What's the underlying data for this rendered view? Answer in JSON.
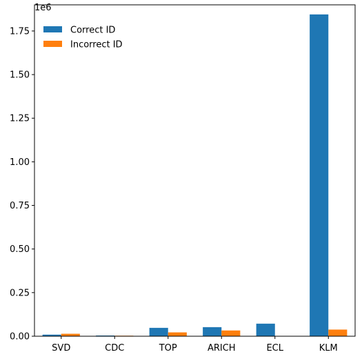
{
  "chart_data": {
    "type": "bar",
    "categories": [
      "SVD",
      "CDC",
      "TOP",
      "ARICH",
      "ECL",
      "KLM"
    ],
    "series": [
      {
        "name": "Correct ID",
        "color": "#1f77b4",
        "values": [
          9000,
          4000,
          48000,
          52000,
          72000,
          1845000
        ]
      },
      {
        "name": "Incorrect ID",
        "color": "#ff7f0e",
        "values": [
          14000,
          3000,
          22000,
          33000,
          0,
          38000
        ]
      }
    ],
    "ylim": [
      0,
      1900000
    ],
    "y_ticks": [
      0,
      250000,
      500000,
      750000,
      1000000,
      1250000,
      1500000,
      1750000
    ],
    "y_tick_labels": [
      "0.00",
      "0.25",
      "0.50",
      "0.75",
      "1.00",
      "1.25",
      "1.50",
      "1.75"
    ],
    "y_offset_label": "1e6",
    "legend_position": "top-left",
    "grid": false,
    "title": "",
    "xlabel": "",
    "ylabel": ""
  }
}
